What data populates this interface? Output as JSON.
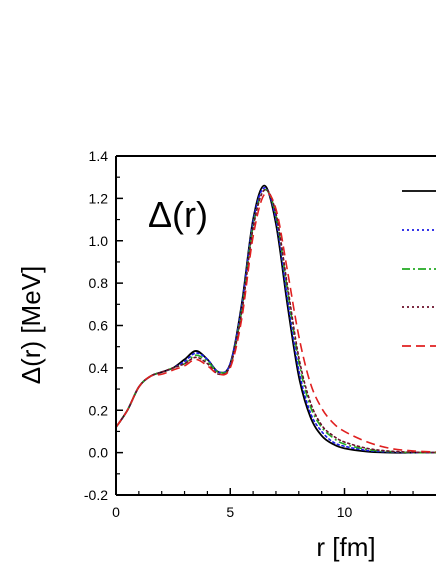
{
  "chart_data": {
    "type": "line",
    "xlabel": "r [fm]",
    "ylabel": "Δ(r)  [MeV]",
    "annotation": "Δ(r)",
    "xlim": [
      0,
      14
    ],
    "ylim": [
      -0.2,
      1.4
    ],
    "xticks": [
      "0",
      "5",
      "10"
    ],
    "yticks": [
      "-0.2",
      "0.0",
      "0.2",
      "0.4",
      "0.6",
      "0.8",
      "1.0",
      "1.2",
      "1.4"
    ],
    "grid": false,
    "legend_placement": "right (cropped)",
    "series": [
      {
        "style": "solid",
        "color": "#000000",
        "x": [
          0,
          0.5,
          1.0,
          1.5,
          2.0,
          2.5,
          3.0,
          3.5,
          4.0,
          4.5,
          5.0,
          5.5,
          6.0,
          6.5,
          7.0,
          7.5,
          8.0,
          8.5,
          9.0,
          9.5,
          10.0,
          11.0,
          12.0,
          13.0,
          14.0
        ],
        "y": [
          0.12,
          0.2,
          0.31,
          0.36,
          0.38,
          0.4,
          0.44,
          0.48,
          0.44,
          0.38,
          0.42,
          0.7,
          1.1,
          1.26,
          1.08,
          0.7,
          0.36,
          0.17,
          0.08,
          0.04,
          0.02,
          0.005,
          0.0,
          0.0,
          0.0
        ]
      },
      {
        "style": "dotted",
        "color": "#1a1ae6",
        "x": [
          0,
          0.5,
          1.0,
          1.5,
          2.0,
          2.5,
          3.0,
          3.5,
          4.0,
          4.5,
          5.0,
          5.5,
          6.0,
          6.5,
          7.0,
          7.5,
          8.0,
          8.5,
          9.0,
          9.5,
          10.0,
          11.0,
          12.0,
          13.0,
          14.0
        ],
        "y": [
          0.12,
          0.2,
          0.31,
          0.36,
          0.38,
          0.4,
          0.43,
          0.47,
          0.44,
          0.38,
          0.42,
          0.69,
          1.09,
          1.25,
          1.1,
          0.73,
          0.39,
          0.19,
          0.1,
          0.05,
          0.03,
          0.01,
          0.003,
          0.0,
          0.0
        ]
      },
      {
        "style": "dashdot",
        "color": "#22aa22",
        "x": [
          0,
          0.5,
          1.0,
          1.5,
          2.0,
          2.5,
          3.0,
          3.5,
          4.0,
          4.5,
          5.0,
          5.5,
          6.0,
          6.5,
          7.0,
          7.5,
          8.0,
          8.5,
          9.0,
          9.5,
          10.0,
          11.0,
          12.0,
          13.0,
          14.0
        ],
        "y": [
          0.12,
          0.2,
          0.31,
          0.36,
          0.38,
          0.4,
          0.42,
          0.46,
          0.43,
          0.38,
          0.41,
          0.67,
          1.07,
          1.24,
          1.12,
          0.77,
          0.43,
          0.22,
          0.12,
          0.07,
          0.04,
          0.015,
          0.005,
          0.0,
          0.0
        ]
      },
      {
        "style": "dotted",
        "color": "#6b0f2a",
        "x": [
          0,
          0.5,
          1.0,
          1.5,
          2.0,
          2.5,
          3.0,
          3.5,
          4.0,
          4.5,
          5.0,
          5.5,
          6.0,
          6.5,
          7.0,
          7.5,
          8.0,
          8.5,
          9.0,
          9.5,
          10.0,
          11.0,
          12.0,
          13.0,
          14.0
        ],
        "y": [
          0.12,
          0.2,
          0.31,
          0.36,
          0.38,
          0.4,
          0.42,
          0.45,
          0.42,
          0.37,
          0.41,
          0.66,
          1.06,
          1.24,
          1.13,
          0.79,
          0.45,
          0.24,
          0.13,
          0.08,
          0.05,
          0.02,
          0.007,
          0.002,
          0.0
        ]
      },
      {
        "style": "dashed",
        "color": "#e02020",
        "x": [
          0,
          0.5,
          1.0,
          1.5,
          2.0,
          2.5,
          3.0,
          3.5,
          4.0,
          4.5,
          5.0,
          5.5,
          6.0,
          6.5,
          7.0,
          7.5,
          8.0,
          8.5,
          9.0,
          9.5,
          10.0,
          11.0,
          12.0,
          13.0,
          14.0
        ],
        "y": [
          0.12,
          0.2,
          0.31,
          0.36,
          0.37,
          0.39,
          0.41,
          0.44,
          0.41,
          0.37,
          0.4,
          0.63,
          1.02,
          1.22,
          1.15,
          0.86,
          0.55,
          0.33,
          0.21,
          0.14,
          0.1,
          0.05,
          0.02,
          0.008,
          0.003
        ]
      }
    ]
  }
}
